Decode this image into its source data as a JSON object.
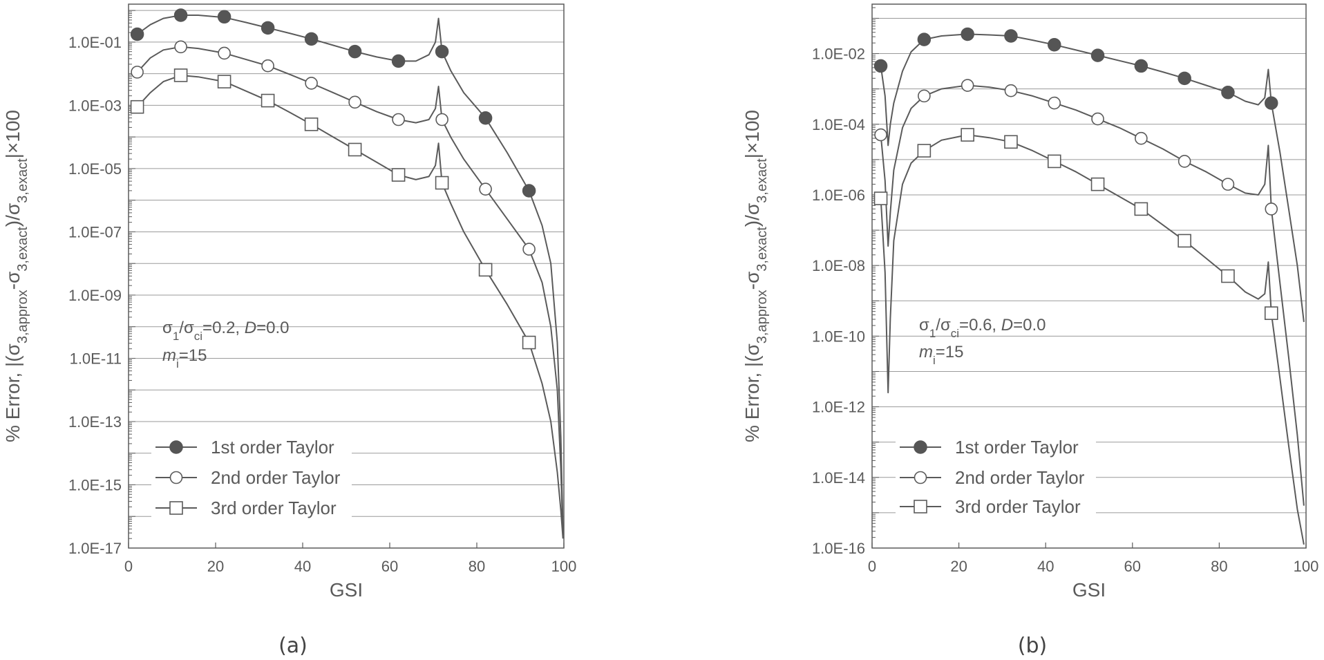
{
  "chart_data": [
    {
      "type": "line",
      "panel_label": "(a)",
      "xlabel": "GSI",
      "ylabel_prefix": "% Error, |(σ",
      "ylabel_sub1": "3,approx",
      "ylabel_mid": "-σ",
      "ylabel_sub2": "3,exact",
      "ylabel_mid2": ")/σ",
      "ylabel_sub3": "3,exact",
      "ylabel_suffix": "|×100",
      "xlim": [
        0,
        100
      ],
      "xticks": [
        0,
        20,
        40,
        60,
        80,
        100
      ],
      "ylim_log10": [
        -17,
        0.2
      ],
      "yticks_log10": [
        -1,
        -3,
        -5,
        -7,
        -9,
        -11,
        -13,
        -15,
        -17
      ],
      "ytick_labels": [
        "1.0E-01",
        "1.0E-03",
        "1.0E-05",
        "1.0E-07",
        "1.0E-09",
        "1.0E-11",
        "1.0E-13",
        "1.0E-15",
        "1.0E-17"
      ],
      "annotation": {
        "line1_a": "σ",
        "line1_sub1": "1",
        "line1_b": "/σ",
        "line1_sub2": "ci",
        "line1_c": "=0.2, ",
        "line1_d": "D",
        "line1_e": "=0.0",
        "line2_a": "m",
        "line2_sub": "i",
        "line2_b": "=15"
      },
      "series": [
        {
          "name": "1st order Taylor",
          "marker": "filled-circle",
          "marker_x": [
            2,
            12,
            22,
            32,
            42,
            52,
            62,
            72,
            82,
            92
          ],
          "marker_log10": [
            -0.75,
            -0.15,
            -0.2,
            -0.55,
            -0.9,
            -1.3,
            -1.6,
            -1.3,
            -3.4,
            -5.7
          ],
          "curve_x": [
            2,
            5,
            8,
            12,
            16,
            22,
            27,
            32,
            37,
            42,
            47,
            52,
            57,
            62,
            66,
            69,
            70.5,
            71.2,
            72,
            74,
            77,
            82,
            87,
            92,
            95,
            97,
            98.5,
            99.3,
            99.8
          ],
          "curve_log10": [
            -0.75,
            -0.45,
            -0.25,
            -0.15,
            -0.15,
            -0.22,
            -0.38,
            -0.55,
            -0.72,
            -0.9,
            -1.1,
            -1.3,
            -1.47,
            -1.6,
            -1.6,
            -1.4,
            -1.0,
            -0.25,
            -1.3,
            -1.9,
            -2.6,
            -3.4,
            -4.5,
            -5.7,
            -6.8,
            -8.0,
            -10.5,
            -13.5,
            -16.5
          ]
        },
        {
          "name": "2nd order Taylor",
          "marker": "open-circle",
          "marker_x": [
            2,
            12,
            22,
            32,
            42,
            52,
            62,
            72,
            82,
            92
          ],
          "marker_log10": [
            -1.95,
            -1.15,
            -1.35,
            -1.75,
            -2.3,
            -2.9,
            -3.45,
            -3.45,
            -5.65,
            -7.55
          ],
          "curve_x": [
            2,
            5,
            8,
            12,
            16,
            22,
            27,
            32,
            37,
            42,
            47,
            52,
            57,
            62,
            66,
            69,
            70.5,
            71.2,
            72,
            74,
            77,
            82,
            87,
            92,
            95,
            97,
            98.5,
            99.3,
            99.8
          ],
          "curve_log10": [
            -1.95,
            -1.5,
            -1.25,
            -1.15,
            -1.2,
            -1.35,
            -1.55,
            -1.75,
            -2.02,
            -2.3,
            -2.6,
            -2.9,
            -3.2,
            -3.45,
            -3.55,
            -3.45,
            -3.1,
            -2.4,
            -3.45,
            -4.0,
            -4.7,
            -5.65,
            -6.6,
            -7.55,
            -8.6,
            -10.0,
            -12.0,
            -14.5,
            -16.6
          ]
        },
        {
          "name": "3rd order Taylor",
          "marker": "open-square",
          "marker_x": [
            2,
            12,
            22,
            32,
            42,
            52,
            62,
            72,
            82,
            92
          ],
          "marker_log10": [
            -3.05,
            -2.05,
            -2.25,
            -2.85,
            -3.6,
            -4.4,
            -5.2,
            -5.45,
            -8.2,
            -10.5
          ],
          "curve_x": [
            2,
            5,
            8,
            12,
            16,
            22,
            27,
            32,
            37,
            42,
            47,
            52,
            57,
            62,
            66,
            69,
            70.5,
            71.2,
            72,
            74,
            77,
            82,
            87,
            92,
            95,
            97,
            98.5,
            99.3,
            99.8
          ],
          "curve_log10": [
            -3.05,
            -2.6,
            -2.25,
            -2.05,
            -2.1,
            -2.25,
            -2.55,
            -2.85,
            -3.22,
            -3.6,
            -4.0,
            -4.4,
            -4.8,
            -5.2,
            -5.35,
            -5.25,
            -4.9,
            -4.2,
            -5.45,
            -6.1,
            -7.0,
            -8.2,
            -9.3,
            -10.5,
            -11.8,
            -13.0,
            -14.6,
            -15.8,
            -16.7
          ]
        }
      ]
    },
    {
      "type": "line",
      "panel_label": "(b)",
      "xlabel": "GSI",
      "ylabel_prefix": "% Error, |(σ",
      "ylabel_sub1": "3,approx",
      "ylabel_mid": "-σ",
      "ylabel_sub2": "3,exact",
      "ylabel_mid2": ")/σ",
      "ylabel_sub3": "3,exact",
      "ylabel_suffix": "|×100",
      "xlim": [
        0,
        100
      ],
      "xticks": [
        0,
        20,
        40,
        60,
        80,
        100
      ],
      "ylim_log10": [
        -16,
        -0.6
      ],
      "yticks_log10": [
        -2,
        -4,
        -6,
        -8,
        -10,
        -12,
        -14,
        -16
      ],
      "ytick_labels": [
        "1.0E-02",
        "1.0E-04",
        "1.0E-06",
        "1.0E-08",
        "1.0E-10",
        "1.0E-12",
        "1.0E-14",
        "1.0E-16"
      ],
      "annotation": {
        "line1_a": "σ",
        "line1_sub1": "1",
        "line1_b": "/σ",
        "line1_sub2": "ci",
        "line1_c": "=0.6, ",
        "line1_d": "D",
        "line1_e": "=0.0",
        "line2_a": "m",
        "line2_sub": "i",
        "line2_b": "=15"
      },
      "series": [
        {
          "name": "1st order Taylor",
          "marker": "filled-circle",
          "marker_x": [
            2,
            12,
            22,
            32,
            42,
            52,
            62,
            72,
            82,
            92
          ],
          "marker_log10": [
            -2.35,
            -1.6,
            -1.45,
            -1.5,
            -1.75,
            -2.05,
            -2.35,
            -2.7,
            -3.1,
            -3.4
          ],
          "curve_x": [
            2,
            3,
            3.7,
            4.2,
            5,
            7,
            9,
            12,
            16,
            22,
            27,
            32,
            37,
            42,
            47,
            52,
            57,
            62,
            67,
            72,
            77,
            82,
            86,
            89,
            90.5,
            91.3,
            92,
            94,
            96,
            98,
            99.5
          ],
          "curve_log10": [
            -2.35,
            -3.2,
            -4.6,
            -4.0,
            -3.4,
            -2.5,
            -1.95,
            -1.6,
            -1.5,
            -1.45,
            -1.47,
            -1.5,
            -1.62,
            -1.75,
            -1.9,
            -2.05,
            -2.2,
            -2.35,
            -2.52,
            -2.7,
            -2.9,
            -3.1,
            -3.35,
            -3.45,
            -3.25,
            -2.45,
            -3.4,
            -4.8,
            -6.4,
            -8.0,
            -9.6
          ]
        },
        {
          "name": "2nd order Taylor",
          "marker": "open-circle",
          "marker_x": [
            2,
            12,
            22,
            32,
            42,
            52,
            62,
            72,
            82,
            92
          ],
          "marker_log10": [
            -4.3,
            -3.2,
            -2.9,
            -3.05,
            -3.4,
            -3.85,
            -4.4,
            -5.05,
            -5.7,
            -6.4
          ],
          "curve_x": [
            2,
            3,
            3.7,
            4.2,
            5,
            7,
            9,
            12,
            16,
            22,
            27,
            32,
            37,
            42,
            47,
            52,
            57,
            62,
            67,
            72,
            77,
            82,
            86,
            89,
            90.5,
            91.3,
            92,
            94,
            96,
            98,
            99.5
          ],
          "curve_log10": [
            -4.3,
            -5.6,
            -7.45,
            -6.5,
            -5.3,
            -4.1,
            -3.55,
            -3.2,
            -3.0,
            -2.9,
            -2.95,
            -3.05,
            -3.2,
            -3.4,
            -3.6,
            -3.85,
            -4.1,
            -4.4,
            -4.7,
            -5.05,
            -5.35,
            -5.7,
            -5.95,
            -6.0,
            -5.7,
            -4.6,
            -6.4,
            -8.5,
            -10.6,
            -12.8,
            -14.8
          ]
        },
        {
          "name": "3rd order Taylor",
          "marker": "open-square",
          "marker_x": [
            2,
            12,
            22,
            32,
            42,
            52,
            62,
            72,
            82,
            92
          ],
          "marker_log10": [
            -6.1,
            -4.75,
            -4.3,
            -4.5,
            -5.05,
            -5.7,
            -6.4,
            -7.3,
            -8.3,
            -9.35
          ],
          "curve_x": [
            2,
            3,
            3.7,
            4.2,
            5,
            7,
            9,
            12,
            16,
            22,
            27,
            32,
            37,
            42,
            47,
            52,
            57,
            62,
            67,
            72,
            77,
            82,
            86,
            89,
            90.5,
            91.3,
            92,
            94,
            96,
            98,
            99.5
          ],
          "curve_log10": [
            -6.1,
            -8.2,
            -11.6,
            -9.5,
            -7.3,
            -5.7,
            -5.1,
            -4.75,
            -4.45,
            -4.3,
            -4.38,
            -4.5,
            -4.75,
            -5.05,
            -5.35,
            -5.7,
            -6.05,
            -6.4,
            -6.85,
            -7.3,
            -7.8,
            -8.3,
            -8.75,
            -8.95,
            -8.8,
            -7.9,
            -9.35,
            -11.2,
            -13.1,
            -14.9,
            -15.9
          ]
        }
      ]
    }
  ]
}
